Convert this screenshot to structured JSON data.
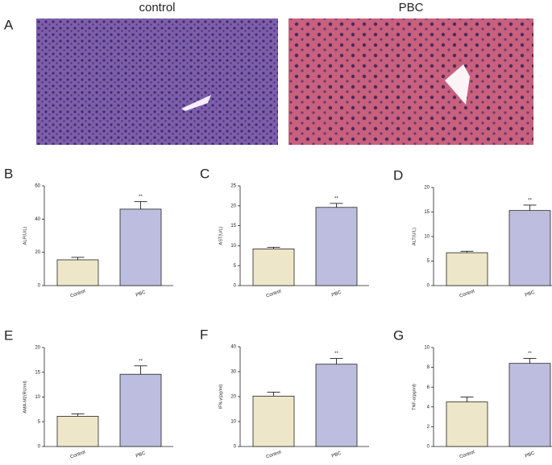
{
  "panel_a": {
    "label": "A",
    "images": [
      {
        "title": "control"
      },
      {
        "title": "PBC"
      }
    ]
  },
  "chart_data": [
    {
      "type": "bar",
      "panel": "B",
      "ylabel": "ALP(U/L)",
      "categories": [
        "Control",
        "PBC"
      ],
      "values": [
        15.5,
        46
      ],
      "errors": [
        1.5,
        4.5
      ],
      "annotation": "**",
      "colors": [
        "#ede6c8",
        "#bdbde0"
      ],
      "ylim": [
        0,
        60
      ],
      "yticks": [
        0,
        20,
        40,
        60
      ]
    },
    {
      "type": "bar",
      "panel": "C",
      "ylabel": "AST(U/L)",
      "categories": [
        "Control",
        "PBC"
      ],
      "values": [
        9.2,
        19.6
      ],
      "errors": [
        0.4,
        1.0
      ],
      "annotation": "**",
      "colors": [
        "#ede6c8",
        "#bdbde0"
      ],
      "ylim": [
        0,
        25
      ],
      "yticks": [
        0,
        5,
        10,
        15,
        20,
        25
      ]
    },
    {
      "type": "bar",
      "panel": "D",
      "ylabel": "ALT(U/L)",
      "categories": [
        "Control",
        "PBC"
      ],
      "values": [
        6.7,
        15.3
      ],
      "errors": [
        0.3,
        1.1
      ],
      "annotation": "**",
      "colors": [
        "#ede6c8",
        "#bdbde0"
      ],
      "ylim": [
        0,
        20
      ],
      "yticks": [
        0,
        5,
        10,
        15,
        20
      ]
    },
    {
      "type": "bar",
      "panel": "E",
      "ylabel": "AMA-M2(RU/ml)",
      "categories": [
        "Control",
        "PBC"
      ],
      "values": [
        6.1,
        14.6
      ],
      "errors": [
        0.5,
        1.7
      ],
      "annotation": "**",
      "colors": [
        "#ede6c8",
        "#bdbde0"
      ],
      "ylim": [
        0,
        20
      ],
      "yticks": [
        0,
        5,
        10,
        15,
        20
      ]
    },
    {
      "type": "bar",
      "panel": "F",
      "ylabel": "IFN-γ(pg/ml)",
      "categories": [
        "Control",
        "PBC"
      ],
      "values": [
        20.2,
        33
      ],
      "errors": [
        1.6,
        2.3
      ],
      "annotation": "**",
      "colors": [
        "#ede6c8",
        "#bdbde0"
      ],
      "ylim": [
        0,
        40
      ],
      "yticks": [
        0,
        10,
        20,
        30,
        40
      ]
    },
    {
      "type": "bar",
      "panel": "G",
      "ylabel": "TNF-α(pg/ml)",
      "categories": [
        "Control",
        "PBC"
      ],
      "values": [
        4.5,
        8.4
      ],
      "errors": [
        0.5,
        0.5
      ],
      "annotation": "**",
      "colors": [
        "#ede6c8",
        "#bdbde0"
      ],
      "ylim": [
        0,
        10
      ],
      "yticks": [
        0,
        2,
        4,
        6,
        8,
        10
      ]
    }
  ]
}
